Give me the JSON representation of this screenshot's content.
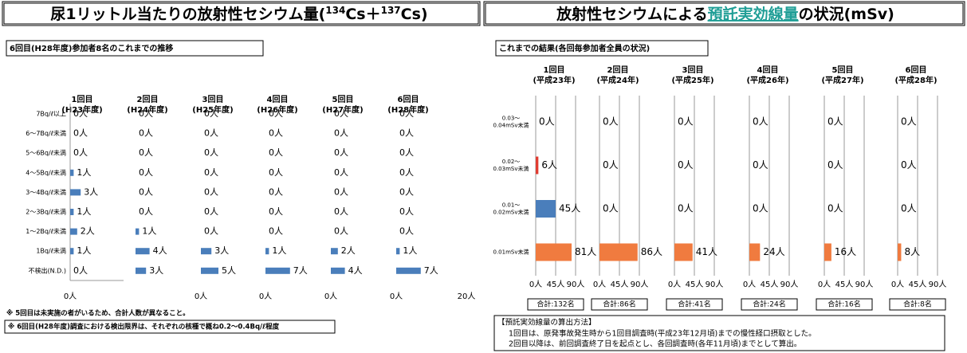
{
  "page": {
    "left_header": [
      "尿1リットル当たりの放射性セシウム量(",
      "134",
      "Cs＋",
      "137",
      "Cs)"
    ],
    "right_header": [
      "放射性セシウムによる",
      "預託実効線量",
      "の状況(mSv)"
    ],
    "notes": [
      "※ 5回目は未実施の者がいるため、合計人数が異なること。",
      "※ 6回目(H28年度)調査における検出限界は、それぞれの核種で概ね0.2～0.4Bq/ℓ程度"
    ],
    "method": {
      "title": "【預託実効線量の算出方法】",
      "lines": [
        "1回目は、原発事故発生時から1回目調査時(平成23年12月頃)までの慢性経口摂取とした。",
        "2回目以降は、前回調査終了日を起点とし、各回調査時(各年11月頃)までとして算出。"
      ]
    }
  },
  "chart_data": [
    {
      "type": "bar",
      "orientation": "horizontal",
      "title": "6回目(H28年度)参加者8名のこれまでの推移",
      "categories": [
        [
          "7Bq/ℓ以上"
        ],
        [
          "6～7Bq/ℓ未満"
        ],
        [
          "5～6Bq/ℓ未満"
        ],
        [
          "4～5Bq/ℓ未満"
        ],
        [
          "3～4Bq/ℓ未満"
        ],
        [
          "2～3Bq/ℓ未満"
        ],
        [
          "1～2Bq/ℓ未満"
        ],
        [
          "1Bq/ℓ未満"
        ],
        [
          "不検出(N.D.)"
        ]
      ],
      "colors": [
        "#4a7ebb",
        "#4a7ebb",
        "#4a7ebb",
        "#4a7ebb",
        "#4a7ebb",
        "#4a7ebb",
        "#4a7ebb",
        "#4a7ebb",
        "#4a7ebb"
      ],
      "xlim": [
        0,
        20
      ],
      "panels": [
        {
          "title": "1回目",
          "subtitle": "(H23年度)",
          "values": [
            0,
            0,
            0,
            1,
            3,
            1,
            2,
            1,
            0
          ],
          "value_labels": [
            "0人",
            "0人",
            "0人",
            "1人",
            "3人",
            "1人",
            "2人",
            "1人",
            "0人"
          ],
          "xticks": [
            {
              "value": 0,
              "label": "0人"
            }
          ]
        },
        {
          "title": "2回目",
          "subtitle": "(H24年度)",
          "values": [
            0,
            0,
            0,
            0,
            0,
            0,
            1,
            4,
            3
          ],
          "value_labels": [
            "0人",
            "0人",
            "0人",
            "0人",
            "0人",
            "0人",
            "1人",
            "4人",
            "3人"
          ]
        },
        {
          "title": "3回目",
          "subtitle": "(H25年度)",
          "values": [
            0,
            0,
            0,
            0,
            0,
            0,
            0,
            3,
            5
          ],
          "value_labels": [
            "0人",
            "0人",
            "0人",
            "0人",
            "0人",
            "0人",
            "0人",
            "3人",
            "5人"
          ],
          "xticks": [
            {
              "value": 0,
              "label": "0人"
            }
          ]
        },
        {
          "title": "4回目",
          "subtitle": "(H26年度)",
          "values": [
            0,
            0,
            0,
            0,
            0,
            0,
            0,
            1,
            7
          ],
          "value_labels": [
            "0人",
            "0人",
            "0人",
            "0人",
            "0人",
            "0人",
            "0人",
            "1人",
            "7人"
          ],
          "xticks": [
            {
              "value": 0,
              "label": "0人"
            }
          ]
        },
        {
          "title": "5回目",
          "subtitle": "(H27年度)",
          "values": [
            0,
            0,
            0,
            0,
            0,
            0,
            0,
            2,
            4
          ],
          "value_labels": [
            "0人",
            "0人",
            "0人",
            "0人",
            "0人",
            "0人",
            "0人",
            "2人",
            "4人"
          ],
          "xticks": [
            {
              "value": 0,
              "label": "0人"
            }
          ]
        },
        {
          "title": "6回目",
          "subtitle": "(H28年度)",
          "values": [
            0,
            0,
            0,
            0,
            0,
            0,
            0,
            1,
            7
          ],
          "value_labels": [
            "0人",
            "0人",
            "0人",
            "0人",
            "0人",
            "0人",
            "0人",
            "1人",
            "7人"
          ],
          "xticks": [
            {
              "value": 0,
              "label": "0人"
            },
            {
              "value": 20,
              "label": "20人"
            }
          ]
        }
      ]
    },
    {
      "type": "bar",
      "orientation": "horizontal",
      "title": "これまでの結果(各回毎参加者全員の状況)",
      "categories": [
        [
          "0.03～",
          "0.04mSv未満"
        ],
        [
          "0.02～",
          "0.03mSv未満"
        ],
        [
          "0.01～",
          "0.02mSv未満"
        ],
        [
          "0.01mSv未満"
        ]
      ],
      "colors": [
        "#4a7ebb",
        "#e03c31",
        "#4a7ebb",
        "#f07b3f"
      ],
      "xlim": [
        0,
        90
      ],
      "panels": [
        {
          "title": "1回目",
          "subtitle": "(平成23年)",
          "values": [
            0,
            6,
            45,
            81
          ],
          "value_labels": [
            "0人",
            "6人",
            "45人",
            "81人"
          ],
          "xticks": [
            {
              "value": 0,
              "label": "0人"
            },
            {
              "value": 45,
              "label": "45人"
            },
            {
              "value": 90,
              "label": "90人"
            }
          ],
          "total": "合計:132名"
        },
        {
          "title": "2回目",
          "subtitle": "(平成24年)",
          "values": [
            0,
            0,
            0,
            86
          ],
          "value_labels": [
            "0人",
            "0人",
            "0人",
            "86人"
          ],
          "xticks": [
            {
              "value": 0,
              "label": "0人"
            },
            {
              "value": 45,
              "label": "45人"
            },
            {
              "value": 90,
              "label": "90人"
            }
          ],
          "total": "合計:86名"
        },
        {
          "title": "3回目",
          "subtitle": "(平成25年)",
          "values": [
            0,
            0,
            0,
            41
          ],
          "value_labels": [
            "0人",
            "0人",
            "0人",
            "41人"
          ],
          "xticks": [
            {
              "value": 0,
              "label": "0人"
            },
            {
              "value": 45,
              "label": "45人"
            },
            {
              "value": 90,
              "label": "90人"
            }
          ],
          "total": "合計:41名"
        },
        {
          "title": "4回目",
          "subtitle": "(平成26年)",
          "values": [
            0,
            0,
            0,
            24
          ],
          "value_labels": [
            "0人",
            "0人",
            "0人",
            "24人"
          ],
          "xticks": [
            {
              "value": 0,
              "label": "0人"
            },
            {
              "value": 45,
              "label": "45人"
            },
            {
              "value": 90,
              "label": "90人"
            }
          ],
          "total": "合計:24名"
        },
        {
          "title": "5回目",
          "subtitle": "(平成27年)",
          "values": [
            0,
            0,
            0,
            16
          ],
          "value_labels": [
            "0人",
            "0人",
            "0人",
            "16人"
          ],
          "xticks": [
            {
              "value": 0,
              "label": "0人"
            },
            {
              "value": 45,
              "label": "45人"
            },
            {
              "value": 90,
              "label": "90人"
            }
          ],
          "total": "合計:16名"
        },
        {
          "title": "6回目",
          "subtitle": "(平成28年)",
          "values": [
            0,
            0,
            0,
            8
          ],
          "value_labels": [
            "0人",
            "0人",
            "0人",
            "8人"
          ],
          "xticks": [
            {
              "value": 0,
              "label": "0人"
            },
            {
              "value": 45,
              "label": "45人"
            },
            {
              "value": 90,
              "label": "90人"
            }
          ],
          "total": "合計:8名"
        }
      ]
    }
  ]
}
